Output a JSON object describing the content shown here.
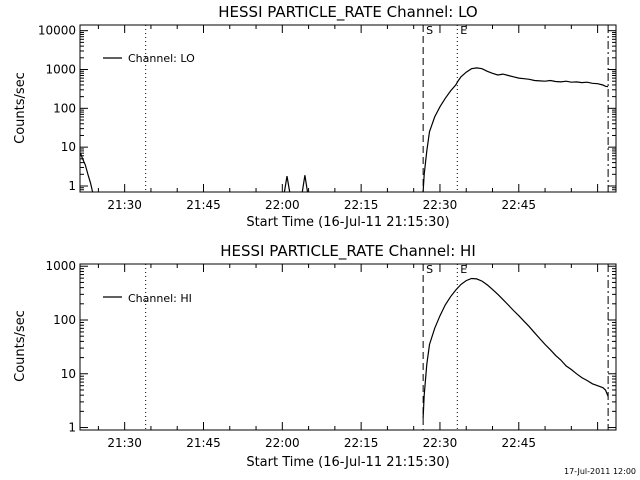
{
  "footer": {
    "timestamp": "17-Jul-2011 12:00"
  },
  "chart_data": [
    {
      "type": "line",
      "title": "HESSI PARTICLE_RATE Channel: LO",
      "xlabel": "Start Time (16-Jul-11 21:15:30)",
      "ylabel": "Counts/sec",
      "yscale": "log",
      "ylim": [
        0.7,
        14000
      ],
      "xlim_minutes": [
        21.5,
        123.5
      ],
      "x_ticks": [
        {
          "label": "21:30",
          "minutes": 30
        },
        {
          "label": "21:45",
          "minutes": 45
        },
        {
          "label": "22:00",
          "minutes": 60
        },
        {
          "label": "22:15",
          "minutes": 75
        },
        {
          "label": "22:30",
          "minutes": 90
        },
        {
          "label": "22:45",
          "minutes": 105
        }
      ],
      "y_ticks": [
        {
          "label": "1",
          "value": 1
        },
        {
          "label": "10",
          "value": 10
        },
        {
          "label": "100",
          "value": 100
        },
        {
          "label": "1000",
          "value": 1000
        },
        {
          "label": "10000",
          "value": 10000
        }
      ],
      "legend": {
        "position": "top-left",
        "entries": [
          "Channel: LO"
        ]
      },
      "vlines": [
        {
          "minutes": 34.0,
          "style": "dotted"
        },
        {
          "minutes": 86.8,
          "style": "dashed",
          "label": "S"
        },
        {
          "minutes": 93.3,
          "style": "dotted",
          "label": "E"
        },
        {
          "minutes": 122.0,
          "style": "dashdot"
        }
      ],
      "series": [
        {
          "name": "Channel: LO",
          "segments": [
            [
              [
                21.6,
                7
              ],
              [
                22.0,
                5
              ],
              [
                22.5,
                3.5
              ],
              [
                23.0,
                2
              ],
              [
                23.5,
                1.2
              ],
              [
                23.9,
                0.7
              ]
            ],
            [
              [
                60.4,
                0.7
              ],
              [
                60.9,
                1.8
              ],
              [
                61.4,
                0.7
              ]
            ],
            [
              [
                63.8,
                0.7
              ],
              [
                64.3,
                1.9
              ],
              [
                64.8,
                0.7
              ]
            ],
            [
              [
                86.8,
                0.7
              ],
              [
                87.0,
                2
              ],
              [
                87.5,
                8
              ],
              [
                88.0,
                25
              ],
              [
                89.0,
                60
              ],
              [
                90.0,
                110
              ],
              [
                91.0,
                180
              ],
              [
                92.0,
                280
              ],
              [
                93.0,
                400
              ],
              [
                93.5,
                520
              ],
              [
                94.0,
                650
              ],
              [
                95.0,
                850
              ],
              [
                96.0,
                1050
              ],
              [
                97.0,
                1100
              ],
              [
                98.0,
                1050
              ],
              [
                99.0,
                900
              ],
              [
                100.0,
                800
              ],
              [
                101.0,
                720
              ],
              [
                102.0,
                760
              ],
              [
                103.0,
                700
              ],
              [
                104.0,
                650
              ],
              [
                105.0,
                600
              ],
              [
                106.0,
                580
              ],
              [
                107.0,
                560
              ],
              [
                108.0,
                520
              ],
              [
                109.0,
                510
              ],
              [
                110.0,
                500
              ],
              [
                111.0,
                520
              ],
              [
                112.0,
                490
              ],
              [
                113.0,
                480
              ],
              [
                114.0,
                500
              ],
              [
                115.0,
                470
              ],
              [
                116.0,
                480
              ],
              [
                117.0,
                460
              ],
              [
                118.0,
                470
              ],
              [
                119.0,
                440
              ],
              [
                120.0,
                430
              ],
              [
                121.0,
                400
              ],
              [
                121.5,
                370
              ],
              [
                122.0,
                360
              ]
            ]
          ]
        }
      ]
    },
    {
      "type": "line",
      "title": "HESSI PARTICLE_RATE Channel: HI",
      "xlabel": "Start Time (16-Jul-11 21:15:30)",
      "ylabel": "Counts/sec",
      "yscale": "log",
      "ylim": [
        0.9,
        1100
      ],
      "xlim_minutes": [
        21.5,
        123.5
      ],
      "x_ticks": [
        {
          "label": "21:30",
          "minutes": 30
        },
        {
          "label": "21:45",
          "minutes": 45
        },
        {
          "label": "22:00",
          "minutes": 60
        },
        {
          "label": "22:15",
          "minutes": 75
        },
        {
          "label": "22:30",
          "minutes": 90
        },
        {
          "label": "22:45",
          "minutes": 105
        }
      ],
      "y_ticks": [
        {
          "label": "1",
          "value": 1
        },
        {
          "label": "10",
          "value": 10
        },
        {
          "label": "100",
          "value": 100
        },
        {
          "label": "1000",
          "value": 1000
        }
      ],
      "legend": {
        "position": "top-left",
        "entries": [
          "Channel: HI"
        ]
      },
      "vlines": [
        {
          "minutes": 34.0,
          "style": "dotted"
        },
        {
          "minutes": 86.8,
          "style": "dashed",
          "label": "S"
        },
        {
          "minutes": 93.3,
          "style": "dotted",
          "label": "E"
        },
        {
          "minutes": 122.0,
          "style": "dashdot"
        }
      ],
      "series": [
        {
          "name": "Channel: HI",
          "segments": [
            [
              [
                86.8,
                1.5
              ],
              [
                87.0,
                4
              ],
              [
                87.5,
                15
              ],
              [
                88.0,
                35
              ],
              [
                89.0,
                70
              ],
              [
                90.0,
                120
              ],
              [
                91.0,
                190
              ],
              [
                92.0,
                270
              ],
              [
                93.0,
                360
              ],
              [
                94.0,
                460
              ],
              [
                95.0,
                540
              ],
              [
                96.0,
                590
              ],
              [
                97.0,
                580
              ],
              [
                98.0,
                530
              ],
              [
                99.0,
                450
              ],
              [
                100.0,
                370
              ],
              [
                101.0,
                300
              ],
              [
                102.0,
                240
              ],
              [
                103.0,
                190
              ],
              [
                104.0,
                150
              ],
              [
                105.0,
                120
              ],
              [
                106.0,
                95
              ],
              [
                107.0,
                75
              ],
              [
                108.0,
                58
              ],
              [
                109.0,
                45
              ],
              [
                110.0,
                35
              ],
              [
                111.0,
                28
              ],
              [
                112.0,
                22
              ],
              [
                113.0,
                18
              ],
              [
                114.0,
                14
              ],
              [
                115.0,
                12
              ],
              [
                116.0,
                10
              ],
              [
                117.0,
                8.5
              ],
              [
                118.0,
                7.5
              ],
              [
                119.0,
                6.5
              ],
              [
                120.0,
                6
              ],
              [
                121.0,
                5.5
              ],
              [
                121.5,
                5
              ],
              [
                122.0,
                3.8
              ]
            ]
          ]
        }
      ]
    }
  ]
}
